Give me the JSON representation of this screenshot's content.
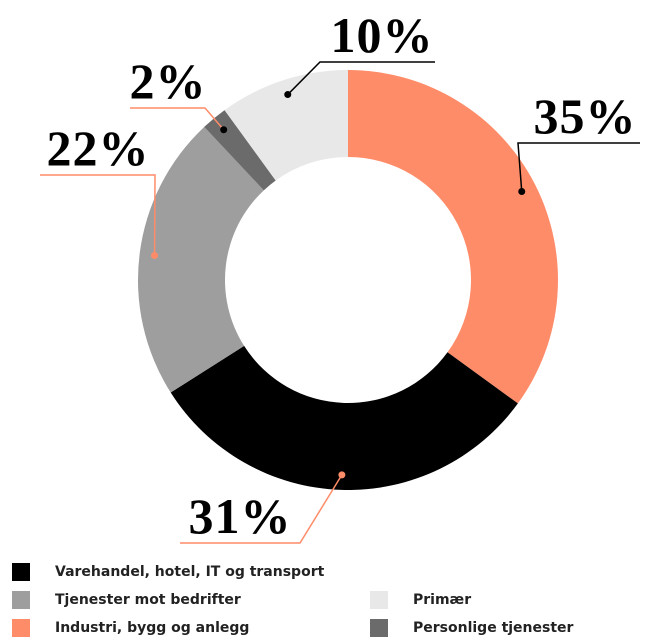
{
  "chart_data": {
    "type": "donut",
    "categories": [
      "Industri, bygg og anlegg",
      "Varehandel, hotel, IT og transport",
      "Tjenester mot bedrifter",
      "Personlige tjenester",
      "Primær"
    ],
    "values": [
      35,
      31,
      22,
      2,
      10
    ],
    "value_labels": [
      "35%",
      "31%",
      "22%",
      "2%",
      "10%"
    ],
    "colors": [
      "#ff8c69",
      "#000000",
      "#9e9e9e",
      "#6b6b6b",
      "#e8e8e8"
    ]
  }
}
